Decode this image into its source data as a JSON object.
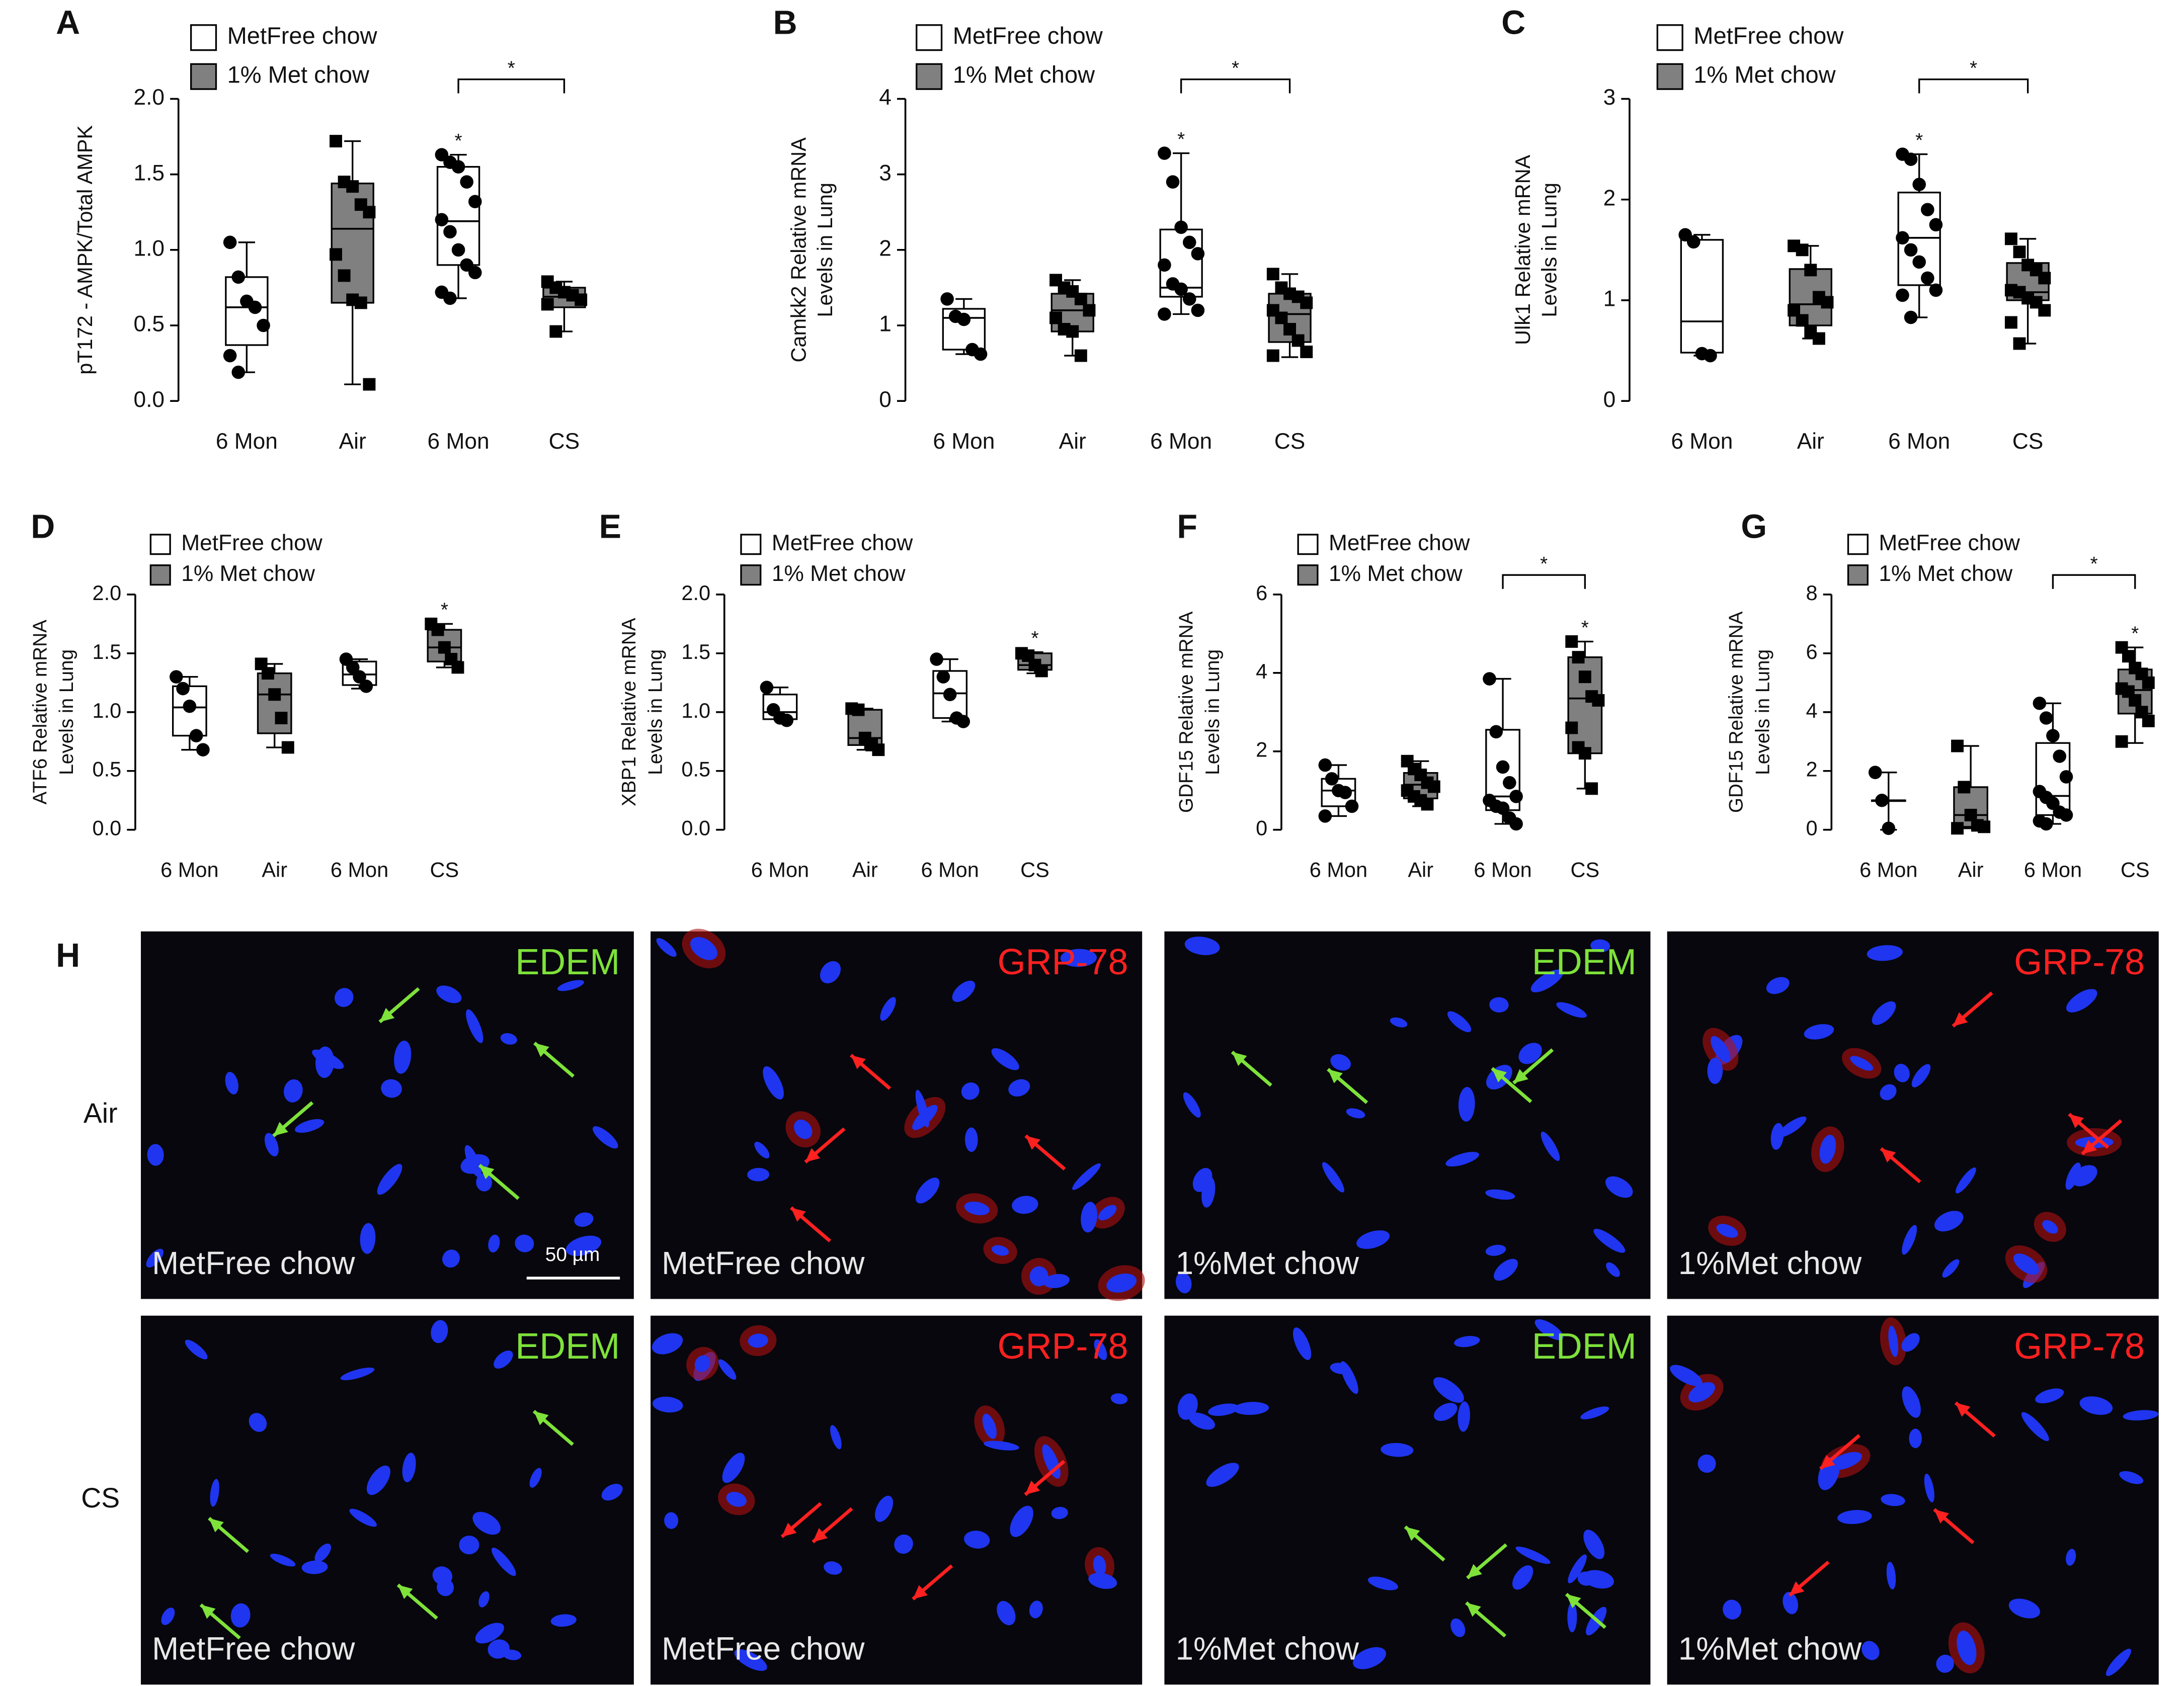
{
  "chart_data": [
    {
      "type": "box",
      "panel": "A",
      "ylabel": [
        "pT172 - AMPK/Total AMPK"
      ],
      "categories": [
        "6 Mon",
        "Air",
        "6 Mon",
        "CS"
      ],
      "ylim": [
        0,
        2
      ],
      "yticks": [
        {
          "value": 0,
          "label": "0.0"
        },
        0.5,
        {
          "value": 1,
          "label": "1.0"
        },
        1.5,
        {
          "value": 2,
          "label": "2.0"
        }
      ],
      "series": [
        {
          "name": "MetFree chow",
          "color": "#ffffff",
          "marker": "circle",
          "boxes": [
            {
              "min": 0.19,
              "q1": 0.37,
              "median": 0.62,
              "q3": 0.82,
              "max": 1.05,
              "points": [
                1.05,
                0.82,
                0.66,
                0.62,
                0.5,
                0.3,
                0.19
              ]
            },
            null,
            {
              "min": 0.68,
              "q1": 0.9,
              "median": 1.19,
              "q3": 1.55,
              "max": 1.63,
              "points": [
                1.63,
                1.58,
                1.55,
                1.45,
                1.32,
                1.2,
                1.12,
                1.0,
                0.9,
                0.85,
                0.72,
                0.68
              ]
            },
            null
          ]
        },
        {
          "name": "1% Met chow",
          "color": "#808080",
          "marker": "square",
          "boxes": [
            null,
            {
              "min": 0.11,
              "q1": 0.65,
              "median": 1.14,
              "q3": 1.44,
              "max": 1.72,
              "points": [
                1.72,
                1.45,
                1.42,
                1.3,
                1.25,
                0.97,
                0.83,
                0.67,
                0.65,
                0.11
              ]
            },
            null,
            {
              "min": 0.46,
              "q1": 0.62,
              "median": 0.69,
              "q3": 0.75,
              "max": 0.79,
              "points": [
                0.79,
                0.75,
                0.72,
                0.7,
                0.67,
                0.64,
                0.46
              ]
            }
          ]
        }
      ],
      "annotations": [
        {
          "text": "*",
          "categories": [
            2,
            3
          ]
        },
        {
          "text": "*",
          "categories": [
            2
          ]
        }
      ]
    },
    {
      "type": "box",
      "panel": "B",
      "ylabel": [
        "Camkk2 Relative mRNA",
        "Levels in Lung"
      ],
      "categories": [
        "6 Mon",
        "Air",
        "6 Mon",
        "CS"
      ],
      "ylim": [
        0,
        4
      ],
      "yticks": [
        0,
        1,
        2,
        3,
        4
      ],
      "series": [
        {
          "name": "MetFree chow",
          "color": "#ffffff",
          "marker": "circle",
          "boxes": [
            {
              "min": 0.62,
              "q1": 0.68,
              "median": 1.1,
              "q3": 1.22,
              "max": 1.35,
              "points": [
                1.35,
                1.12,
                1.08,
                0.68,
                0.62
              ]
            },
            null,
            {
              "min": 1.15,
              "q1": 1.38,
              "median": 1.5,
              "q3": 2.27,
              "max": 3.28,
              "points": [
                3.28,
                2.9,
                2.3,
                2.1,
                1.95,
                1.8,
                1.55,
                1.48,
                1.35,
                1.2,
                1.15
              ]
            },
            null
          ]
        },
        {
          "name": "1% Met chow",
          "color": "#808080",
          "marker": "square",
          "boxes": [
            null,
            {
              "min": 0.6,
              "q1": 0.92,
              "median": 1.2,
              "q3": 1.42,
              "max": 1.6,
              "points": [
                1.6,
                1.5,
                1.45,
                1.35,
                1.2,
                1.1,
                0.95,
                0.92,
                0.6
              ]
            },
            null,
            {
              "min": 0.58,
              "q1": 0.78,
              "median": 1.15,
              "q3": 1.42,
              "max": 1.68,
              "points": [
                1.68,
                1.5,
                1.42,
                1.38,
                1.3,
                1.2,
                1.1,
                0.95,
                0.8,
                0.65,
                0.6
              ]
            }
          ]
        }
      ],
      "annotations": [
        {
          "text": "*",
          "categories": [
            2,
            3
          ]
        },
        {
          "text": "*",
          "categories": [
            2
          ]
        }
      ]
    },
    {
      "type": "box",
      "panel": "C",
      "ylabel": [
        "Ulk1 Relative mRNA",
        "Levels in Lung"
      ],
      "categories": [
        "6 Mon",
        "Air",
        "6 Mon",
        "CS"
      ],
      "ylim": [
        0,
        3
      ],
      "yticks": [
        0,
        1,
        2,
        3
      ],
      "series": [
        {
          "name": "MetFree chow",
          "color": "#ffffff",
          "marker": "circle",
          "boxes": [
            {
              "min": 0.45,
              "q1": 0.48,
              "median": 0.79,
              "q3": 1.6,
              "max": 1.65,
              "points": [
                1.65,
                1.58,
                0.47,
                0.45
              ]
            },
            null,
            {
              "min": 0.83,
              "q1": 1.15,
              "median": 1.62,
              "q3": 2.07,
              "max": 2.45,
              "points": [
                2.45,
                2.4,
                2.15,
                1.9,
                1.75,
                1.62,
                1.5,
                1.38,
                1.22,
                1.1,
                1.05,
                0.83
              ]
            },
            null
          ]
        },
        {
          "name": "1% Met chow",
          "color": "#808080",
          "marker": "square",
          "boxes": [
            null,
            {
              "min": 0.62,
              "q1": 0.75,
              "median": 0.96,
              "q3": 1.31,
              "max": 1.54,
              "points": [
                1.54,
                1.5,
                1.3,
                1.03,
                0.98,
                0.9,
                0.8,
                0.68,
                0.62
              ]
            },
            null,
            {
              "min": 0.57,
              "q1": 1.0,
              "median": 1.08,
              "q3": 1.37,
              "max": 1.61,
              "points": [
                1.61,
                1.48,
                1.35,
                1.3,
                1.22,
                1.1,
                1.08,
                1.02,
                0.98,
                0.9,
                0.78,
                0.57
              ]
            }
          ]
        }
      ],
      "annotations": [
        {
          "text": "*",
          "categories": [
            2,
            3
          ]
        },
        {
          "text": "*",
          "categories": [
            2
          ]
        }
      ]
    },
    {
      "type": "box",
      "panel": "D",
      "ylabel": [
        "ATF6 Relative mRNA",
        "Levels in Lung"
      ],
      "categories": [
        "6 Mon",
        "Air",
        "6 Mon",
        "CS"
      ],
      "ylim": [
        0,
        2
      ],
      "yticks": [
        {
          "value": 0,
          "label": "0.0"
        },
        0.5,
        {
          "value": 1,
          "label": "1.0"
        },
        1.5,
        {
          "value": 2,
          "label": "2.0"
        }
      ],
      "series": [
        {
          "name": "MetFree chow",
          "color": "#ffffff",
          "marker": "circle",
          "boxes": [
            {
              "min": 0.68,
              "q1": 0.8,
              "median": 1.04,
              "q3": 1.22,
              "max": 1.3,
              "points": [
                1.3,
                1.2,
                1.05,
                0.8,
                0.68
              ]
            },
            null,
            {
              "min": 1.2,
              "q1": 1.23,
              "median": 1.32,
              "q3": 1.43,
              "max": 1.45,
              "points": [
                1.45,
                1.38,
                1.3,
                1.22
              ]
            },
            null
          ]
        },
        {
          "name": "1% Met chow",
          "color": "#808080",
          "marker": "square",
          "boxes": [
            null,
            {
              "min": 0.7,
              "q1": 0.82,
              "median": 1.15,
              "q3": 1.33,
              "max": 1.41,
              "points": [
                1.41,
                1.33,
                1.15,
                0.95,
                0.7
              ]
            },
            null,
            {
              "min": 1.38,
              "q1": 1.43,
              "median": 1.55,
              "q3": 1.7,
              "max": 1.75,
              "points": [
                1.75,
                1.7,
                1.55,
                1.45,
                1.38
              ]
            }
          ]
        }
      ],
      "annotations": [
        {
          "text": "*",
          "categories": [
            3
          ]
        }
      ]
    },
    {
      "type": "box",
      "panel": "E",
      "ylabel": [
        "XBP1 Relative mRNA",
        "Levels in Lung"
      ],
      "categories": [
        "6 Mon",
        "Air",
        "6 Mon",
        "CS"
      ],
      "ylim": [
        0,
        2
      ],
      "yticks": [
        {
          "value": 0,
          "label": "0.0"
        },
        0.5,
        {
          "value": 1,
          "label": "1.0"
        },
        1.5,
        {
          "value": 2,
          "label": "2.0"
        }
      ],
      "series": [
        {
          "name": "MetFree chow",
          "color": "#ffffff",
          "marker": "circle",
          "boxes": [
            {
              "min": 0.94,
              "q1": 0.94,
              "median": 1.0,
              "q3": 1.15,
              "max": 1.21,
              "points": [
                1.21,
                1.02,
                0.95,
                0.93
              ]
            },
            null,
            {
              "min": 0.92,
              "q1": 0.95,
              "median": 1.16,
              "q3": 1.35,
              "max": 1.45,
              "points": [
                1.45,
                1.3,
                1.15,
                0.95,
                0.92
              ]
            },
            null
          ]
        },
        {
          "name": "1% Met chow",
          "color": "#808080",
          "marker": "square",
          "boxes": [
            null,
            {
              "min": 0.68,
              "q1": 0.72,
              "median": 0.78,
              "q3": 1.02,
              "max": 1.03,
              "points": [
                1.03,
                1.02,
                0.78,
                0.72,
                0.68
              ]
            },
            null,
            {
              "min": 1.33,
              "q1": 1.36,
              "median": 1.4,
              "q3": 1.5,
              "max": 1.51,
              "points": [
                1.5,
                1.48,
                1.4,
                1.35
              ]
            }
          ]
        }
      ],
      "annotations": [
        {
          "text": "*",
          "categories": [
            3
          ]
        }
      ]
    },
    {
      "type": "box",
      "panel": "F",
      "ylabel": [
        "GDF15 Relative mRNA",
        "Levels in Lung"
      ],
      "categories": [
        "6 Mon",
        "Air",
        "6 Mon",
        "CS"
      ],
      "ylim": [
        0,
        6
      ],
      "yticks": [
        0,
        2,
        4,
        6
      ],
      "series": [
        {
          "name": "MetFree chow",
          "color": "#ffffff",
          "marker": "circle",
          "boxes": [
            {
              "min": 0.35,
              "q1": 0.6,
              "median": 1.0,
              "q3": 1.3,
              "max": 1.65,
              "points": [
                1.65,
                1.3,
                1.0,
                0.95,
                0.6,
                0.35
              ]
            },
            null,
            {
              "min": 0.15,
              "q1": 0.5,
              "median": 0.85,
              "q3": 2.55,
              "max": 3.85,
              "points": [
                3.85,
                2.5,
                1.6,
                1.2,
                0.85,
                0.75,
                0.6,
                0.55,
                0.3,
                0.15
              ]
            },
            null
          ]
        },
        {
          "name": "1% Met chow",
          "color": "#808080",
          "marker": "square",
          "boxes": [
            null,
            {
              "min": 0.6,
              "q1": 0.8,
              "median": 1.15,
              "q3": 1.45,
              "max": 1.75,
              "points": [
                1.75,
                1.55,
                1.4,
                1.2,
                1.1,
                1.0,
                0.85,
                0.75,
                0.65
              ]
            },
            null,
            {
              "min": 1.05,
              "q1": 1.95,
              "median": 3.35,
              "q3": 4.4,
              "max": 4.8,
              "points": [
                4.8,
                4.4,
                3.9,
                3.4,
                3.3,
                2.6,
                2.1,
                1.95,
                1.05
              ]
            }
          ]
        }
      ],
      "annotations": [
        {
          "text": "*",
          "categories": [
            2,
            3
          ]
        },
        {
          "text": "*",
          "categories": [
            3
          ]
        }
      ]
    },
    {
      "type": "box",
      "panel": "G",
      "ylabel": [
        "GDF15 Relative mRNA",
        "Levels in Lung"
      ],
      "categories": [
        "6 Mon",
        "Air",
        "6 Mon",
        "CS"
      ],
      "ylim": [
        0,
        8
      ],
      "yticks": [
        0,
        2,
        4,
        6,
        8
      ],
      "series": [
        {
          "name": "MetFree chow",
          "color": "#ffffff",
          "marker": "circle",
          "boxes": [
            {
              "min": 0.0,
              "q1": 1.0,
              "median": 1.0,
              "q3": 1.0,
              "max": 1.95,
              "points": [
                1.95,
                1.0,
                0.05
              ]
            },
            null,
            {
              "min": 0.2,
              "q1": 0.5,
              "median": 1.15,
              "q3": 2.95,
              "max": 4.3,
              "points": [
                4.3,
                3.8,
                3.2,
                2.5,
                1.8,
                1.3,
                1.1,
                0.9,
                0.6,
                0.5,
                0.3,
                0.2
              ]
            },
            null
          ]
        },
        {
          "name": "1% Met chow",
          "color": "#808080",
          "marker": "square",
          "boxes": [
            null,
            {
              "min": 0.05,
              "q1": 0.1,
              "median": 0.5,
              "q3": 1.45,
              "max": 2.85,
              "points": [
                2.85,
                1.45,
                0.5,
                0.15,
                0.1,
                0.05
              ]
            },
            null,
            {
              "min": 2.95,
              "q1": 3.95,
              "median": 4.75,
              "q3": 5.45,
              "max": 6.2,
              "points": [
                6.2,
                5.9,
                5.5,
                5.3,
                5.0,
                4.8,
                4.7,
                4.4,
                4.0,
                3.7,
                3.0
              ]
            }
          ]
        }
      ],
      "annotations": [
        {
          "text": "*",
          "categories": [
            2,
            3
          ]
        },
        {
          "text": "*",
          "categories": [
            3
          ]
        }
      ]
    }
  ],
  "panel_h": {
    "panel": "H",
    "rows": [
      "Air",
      "CS"
    ],
    "columns": [
      {
        "stain": "EDEM",
        "diet": "MetFree chow"
      },
      {
        "stain": "GRP-78",
        "diet": "MetFree chow"
      },
      {
        "stain": "EDEM",
        "diet": "1%Met chow"
      },
      {
        "stain": "GRP-78",
        "diet": "1%Met chow"
      }
    ],
    "scale_bar": "50 µm"
  }
}
